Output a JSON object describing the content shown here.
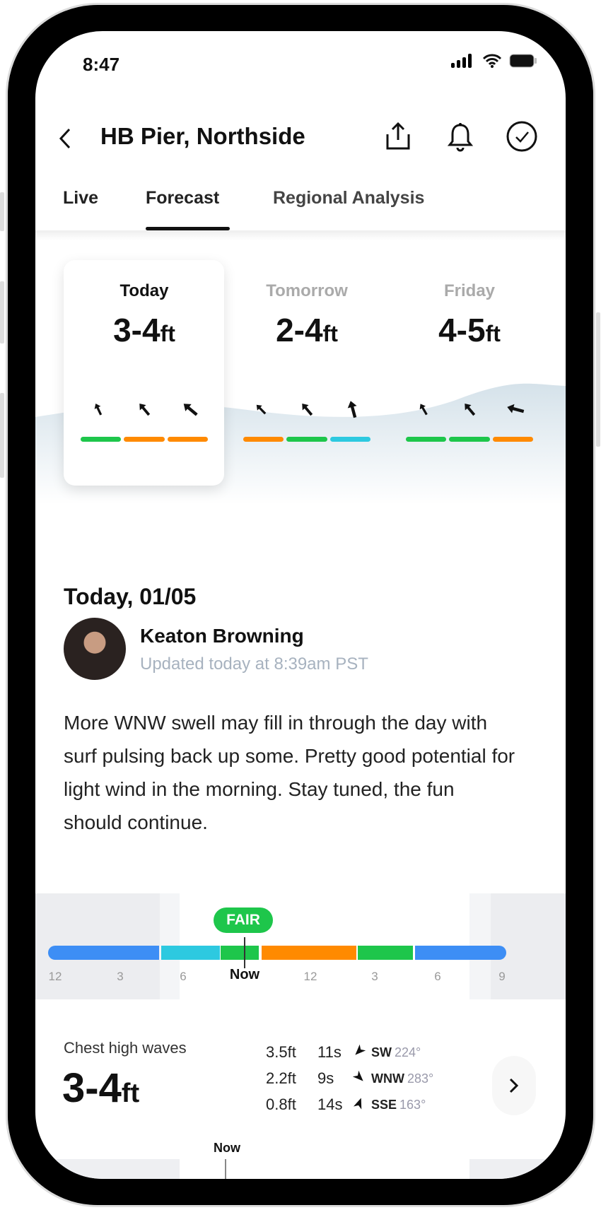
{
  "status_bar": {
    "time": "8:47"
  },
  "header": {
    "title": "HB Pier, Northside"
  },
  "tabs": [
    {
      "label": "Live"
    },
    {
      "label": "Forecast",
      "active": true
    },
    {
      "label": "Regional Analysis"
    }
  ],
  "days": [
    {
      "label": "Today",
      "value": "3-4",
      "unit": "ft",
      "arrows": [
        -25,
        -40,
        -50
      ],
      "conditions": [
        "#1ec64b",
        "#ff8a00",
        "#ff8a00"
      ]
    },
    {
      "label": "Tomorrow",
      "value": "2-4",
      "unit": "ft",
      "arrows": [
        -45,
        -40,
        -15
      ],
      "conditions": [
        "#ff8a00",
        "#1ec64b",
        "#2dc9e0"
      ]
    },
    {
      "label": "Friday",
      "value": "4-5",
      "unit": "ft",
      "arrows": [
        -30,
        -40,
        -75
      ],
      "conditions": [
        "#1ec64b",
        "#1ec64b",
        "#ff8a00"
      ]
    }
  ],
  "report": {
    "date": "Today, 01/05",
    "author": "Keaton Browning",
    "updated": "Updated today at 8:39am PST",
    "text": "More WNW swell may fill in through the day with surf pulsing back up some. Pretty good potential for light wind in the morning. Stay tuned, the fun should continue."
  },
  "timeline": {
    "rating": "FAIR",
    "ticks": [
      "12",
      "3",
      "6",
      "Now",
      "12",
      "3",
      "6",
      "9"
    ],
    "colors": {
      "blue": "#3d8ef5",
      "cyan": "#2dc9e0",
      "green": "#1ec64b",
      "orange": "#ff8a00"
    }
  },
  "surf": {
    "description": "Chest high waves",
    "value": "3-4",
    "unit": "ft",
    "swells": [
      {
        "height": "3.5ft",
        "period": "11s",
        "dir": "SW",
        "deg": "224°"
      },
      {
        "height": "2.2ft",
        "period": "9s",
        "dir": "WNW",
        "deg": "283°"
      },
      {
        "height": "0.8ft",
        "period": "14s",
        "dir": "SSE",
        "deg": "163°"
      }
    ],
    "now_label": "Now"
  }
}
